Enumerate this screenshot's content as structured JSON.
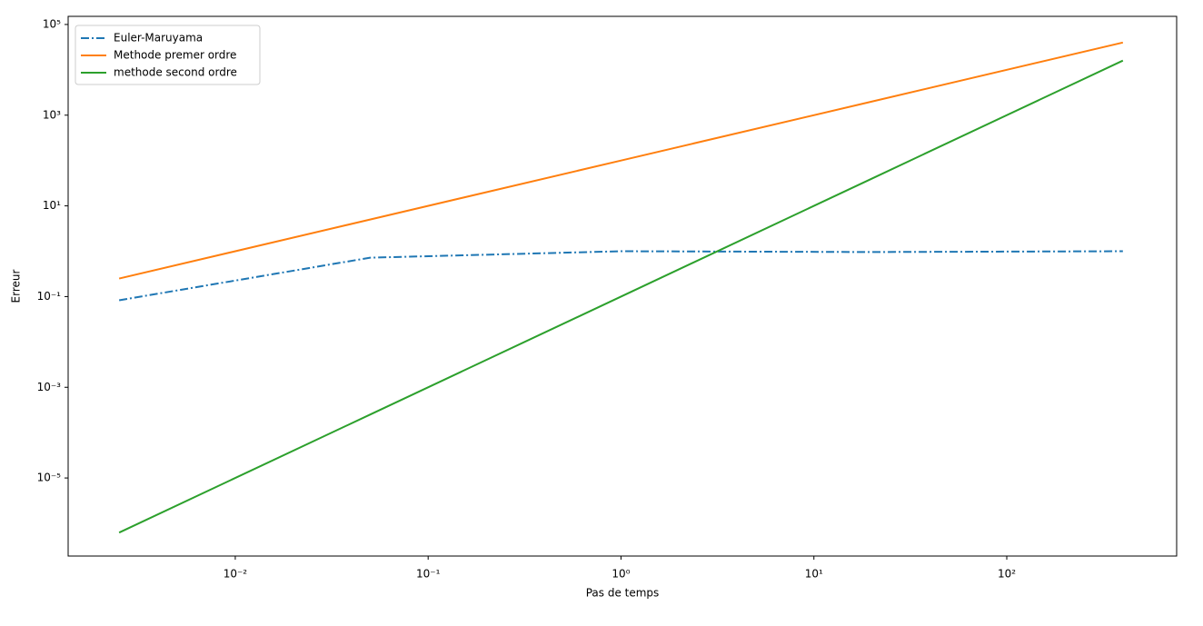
{
  "chart_data": {
    "type": "line",
    "x_label": "Pas de temps",
    "y_label": "Erreur",
    "x": [
      0.0025,
      0.05,
      1,
      20,
      400
    ],
    "series": [
      {
        "name": "Euler-Maruyama",
        "color": "#1f77b4",
        "linestyle": "dashdot",
        "values": [
          0.083,
          0.72,
          1.0,
          0.96,
          1.0
        ]
      },
      {
        "name": "Methode premer ordre",
        "color": "#ff7f0e",
        "linestyle": "solid",
        "values": [
          0.25,
          5,
          100,
          2000,
          40000
        ]
      },
      {
        "name": "methode second ordre",
        "color": "#2ca02c",
        "linestyle": "solid",
        "values": [
          6.25e-07,
          0.00025,
          0.1,
          40,
          16000
        ]
      }
    ],
    "xscale": "log",
    "yscale": "log",
    "xlim": [
      0.00136,
      760
    ],
    "ylim": [
      1.9e-07,
      151000
    ],
    "xticks": [
      {
        "value": 0.01,
        "label": "10⁻²"
      },
      {
        "value": 0.1,
        "label": "10⁻¹"
      },
      {
        "value": 1,
        "label": "10⁰"
      },
      {
        "value": 10,
        "label": "10¹"
      },
      {
        "value": 100,
        "label": "10²"
      }
    ],
    "yticks": [
      {
        "value": 1e-05,
        "label": "10⁻⁵"
      },
      {
        "value": 0.001,
        "label": "10⁻³"
      },
      {
        "value": 0.1,
        "label": "10⁻¹"
      },
      {
        "value": 10,
        "label": "10¹"
      },
      {
        "value": 1000,
        "label": "10³"
      },
      {
        "value": 100000,
        "label": "10⁵"
      }
    ],
    "legend": "upper left"
  }
}
